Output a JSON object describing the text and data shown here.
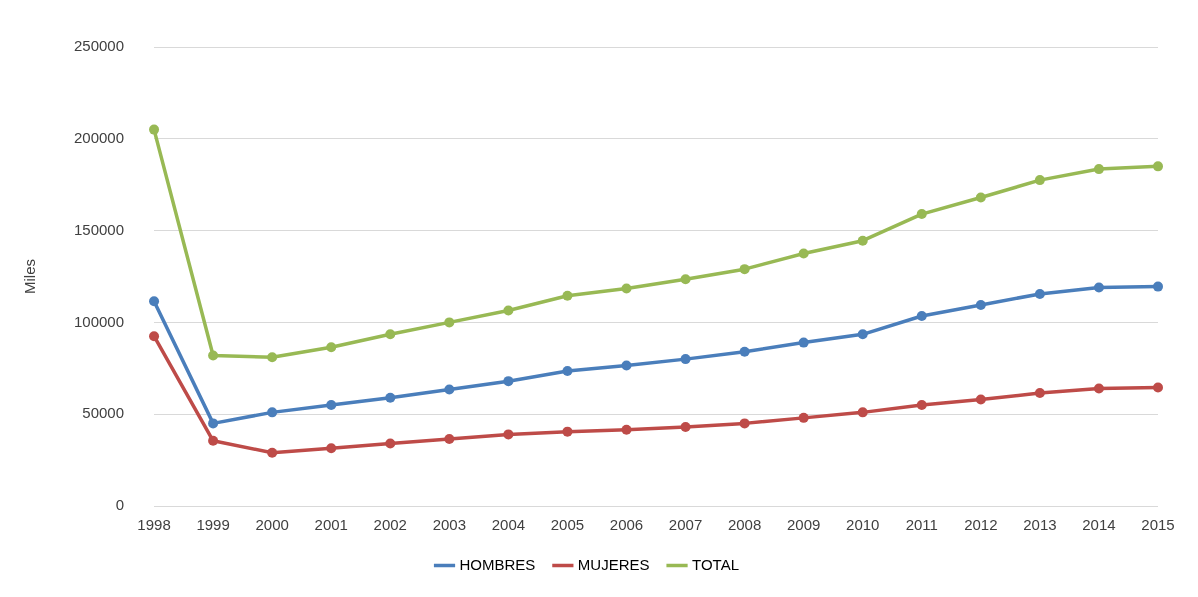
{
  "chart_data": {
    "type": "line",
    "ylabel": "Miles",
    "categories": [
      "1998",
      "1999",
      "2000",
      "2001",
      "2002",
      "2003",
      "2004",
      "2005",
      "2006",
      "2007",
      "2008",
      "2009",
      "2010",
      "2011",
      "2012",
      "2013",
      "2014",
      "2015"
    ],
    "series": [
      {
        "name": "HOMBRES",
        "color": "#4a7ebb",
        "values": [
          111500,
          45000,
          51000,
          55000,
          59000,
          63500,
          68000,
          73500,
          76500,
          80000,
          84000,
          89000,
          93500,
          103500,
          109500,
          115500,
          119000,
          119500
        ]
      },
      {
        "name": "MUJERES",
        "color": "#be4b48",
        "values": [
          92500,
          35500,
          29000,
          31500,
          34000,
          36500,
          39000,
          40500,
          41500,
          43000,
          45000,
          48000,
          51000,
          55000,
          58000,
          61500,
          64000,
          64500
        ]
      },
      {
        "name": "TOTAL",
        "color": "#98b954",
        "values": [
          205000,
          82000,
          81000,
          86500,
          93500,
          100000,
          106500,
          114500,
          118500,
          123500,
          129000,
          137500,
          144500,
          159000,
          168000,
          177500,
          183500,
          185000
        ]
      }
    ],
    "ylim": [
      0,
      250000
    ],
    "yticks": [
      0,
      50000,
      100000,
      150000,
      200000,
      250000
    ],
    "grid": "y",
    "legend": "bottom",
    "marker": "circle",
    "line_style": "solid"
  }
}
